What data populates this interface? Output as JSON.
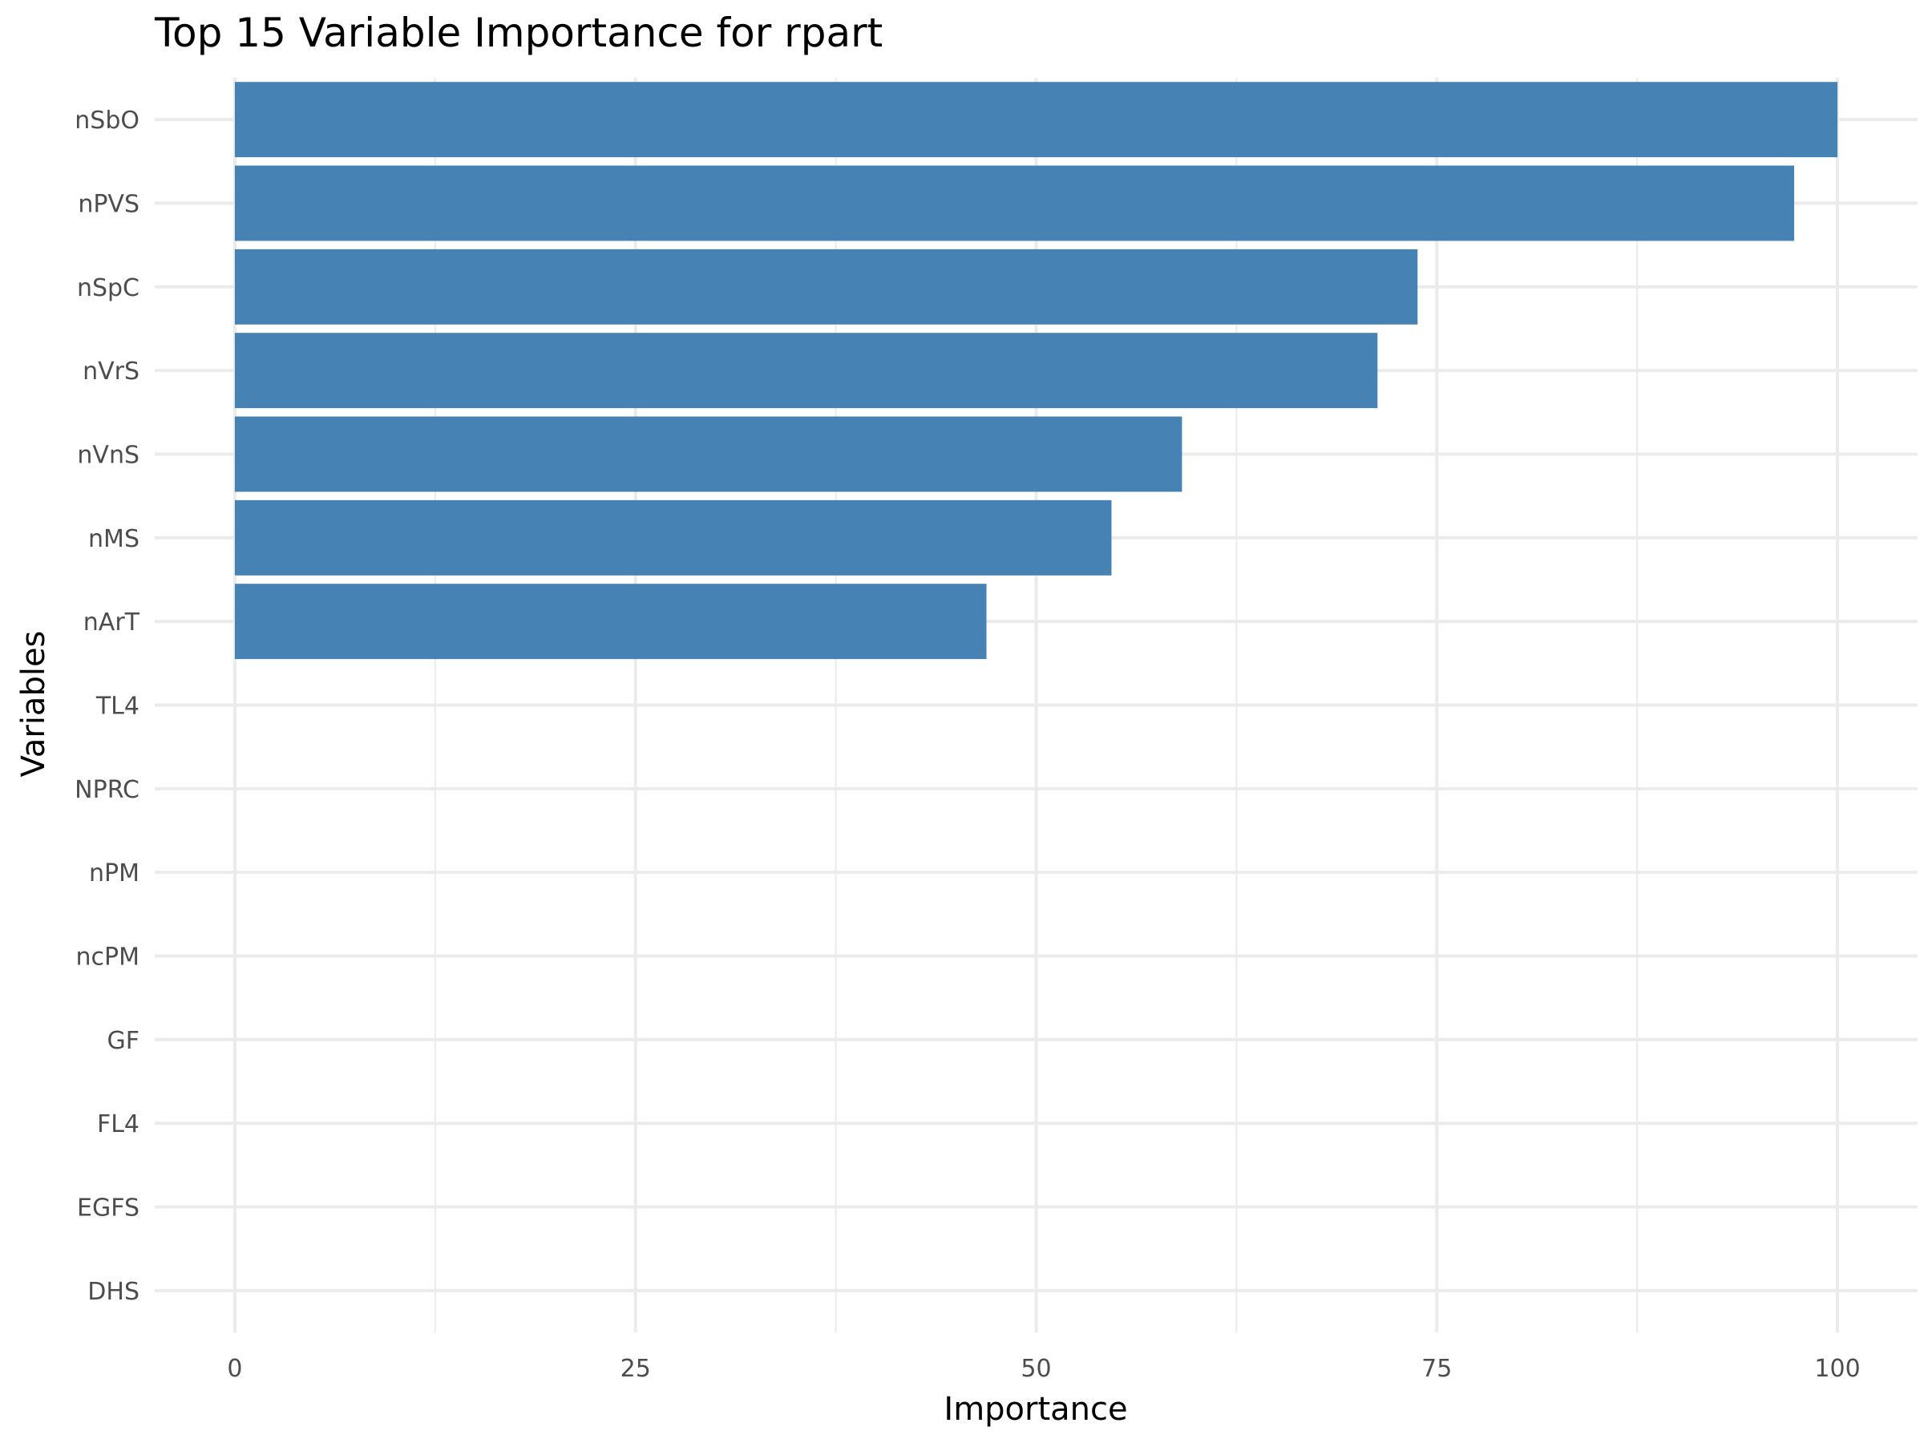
{
  "chart_data": {
    "type": "bar",
    "orientation": "horizontal",
    "title": "Top 15 Variable Importance for rpart",
    "xlabel": "Importance",
    "ylabel": "Variables",
    "categories": [
      "nSbO",
      "nPVS",
      "nSpC",
      "nVrS",
      "nVnS",
      "nMS",
      "nArT",
      "TL4",
      "NPRC",
      "nPM",
      "ncPM",
      "GF",
      "FL4",
      "EGFS",
      "DHS"
    ],
    "values": [
      100,
      97.3,
      73.8,
      71.3,
      59.1,
      54.7,
      46.9,
      0,
      0,
      0,
      0,
      0,
      0,
      0,
      0
    ],
    "xlim": [
      -5,
      105
    ],
    "xticks": [
      0,
      25,
      50,
      75,
      100
    ],
    "bar_color": "#4682b4",
    "grid": true,
    "legend": "none"
  }
}
